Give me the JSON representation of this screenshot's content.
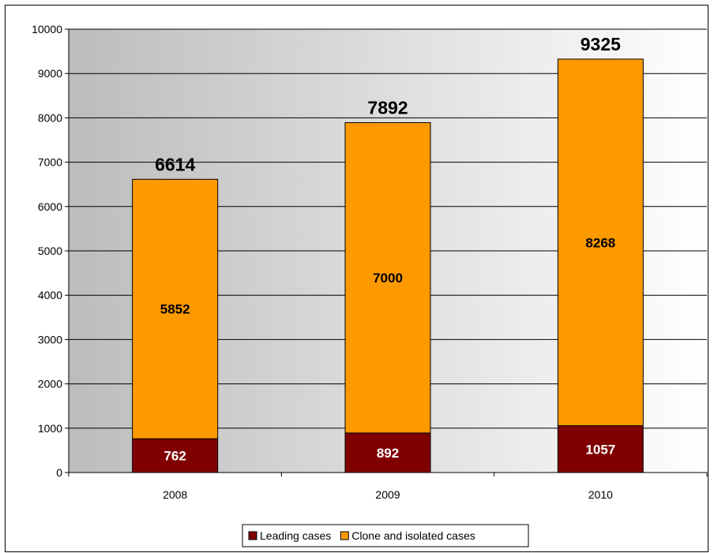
{
  "chart_data": {
    "type": "bar",
    "stacked": true,
    "categories": [
      "2008",
      "2009",
      "2010"
    ],
    "series": [
      {
        "name": "Leading cases",
        "values": [
          762,
          892,
          1057
        ],
        "color": "#800000"
      },
      {
        "name": "Clone and isolated cases",
        "values": [
          5852,
          7000,
          8268
        ],
        "color": "#ff9900"
      }
    ],
    "totals": [
      6614,
      7892,
      9325
    ],
    "ylim": [
      0,
      10000
    ],
    "yticks": [
      0,
      1000,
      2000,
      3000,
      4000,
      5000,
      6000,
      7000,
      8000,
      9000,
      10000
    ],
    "grid": true,
    "legend_position": "bottom",
    "background": "gradient-grey-to-white"
  }
}
